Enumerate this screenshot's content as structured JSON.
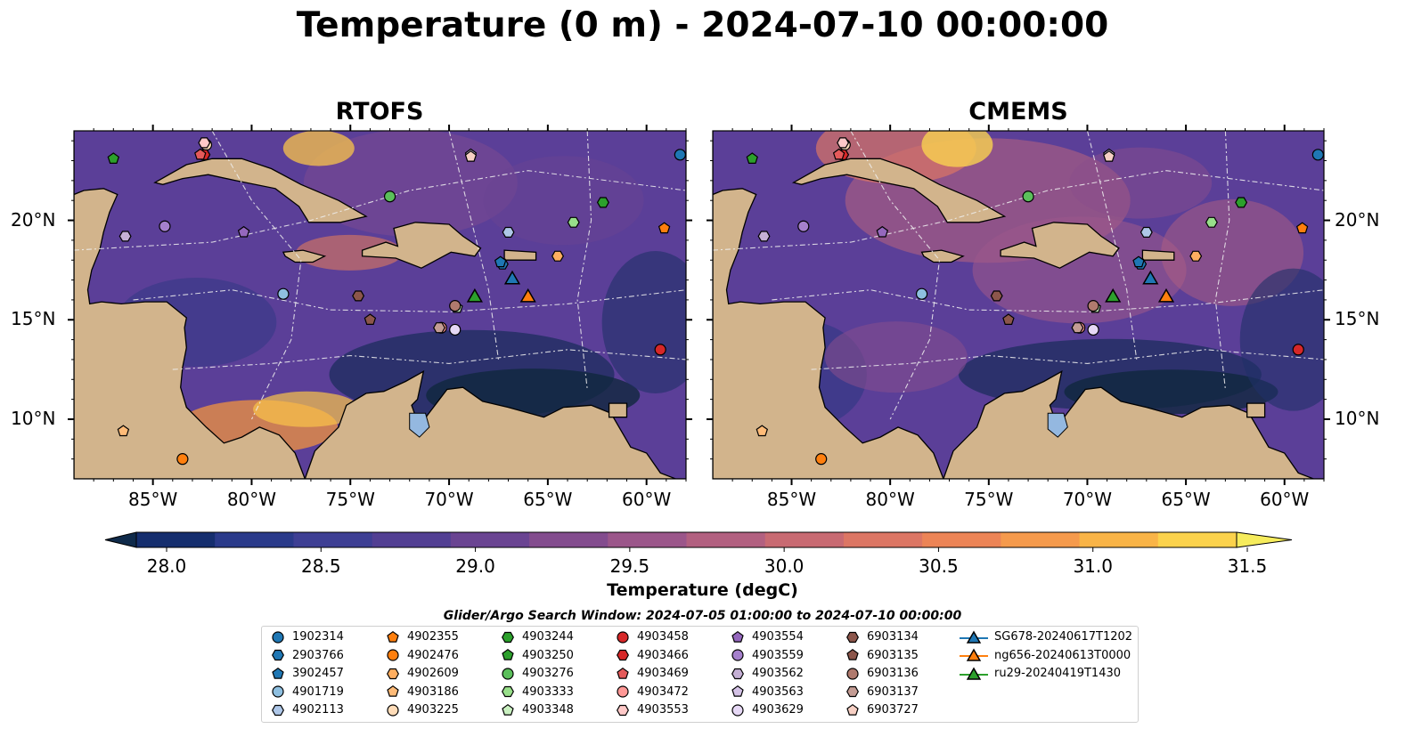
{
  "title": "Temperature (0 m) - 2024-07-10 00:00:00",
  "panels": [
    {
      "title": "RTOFS"
    },
    {
      "title": "CMEMS"
    }
  ],
  "map_axes": {
    "lon_ticks": [
      "85°W",
      "80°W",
      "75°W",
      "70°W",
      "65°W",
      "60°W"
    ],
    "lat_ticks": [
      "20°N",
      "15°N",
      "10°N"
    ],
    "lon_range": [
      -89,
      -58
    ],
    "lat_range": [
      7,
      24.5
    ]
  },
  "colorbar": {
    "label": "Temperature (degC)",
    "range": [
      28.0,
      31.5
    ],
    "tick_labels": [
      "28.0",
      "28.5",
      "29.0",
      "29.5",
      "30.0",
      "30.5",
      "31.0",
      "31.5"
    ],
    "colors": [
      "#0f2a4a",
      "#152e6e",
      "#2a3a8a",
      "#3e3f94",
      "#523f93",
      "#6a4492",
      "#834c8e",
      "#9b568a",
      "#b26080",
      "#c86a72",
      "#dc7664",
      "#ec8456",
      "#f59a4c",
      "#f9b447",
      "#fbd24c",
      "#f6ec5c"
    ],
    "extend": "both"
  },
  "search_window": "Glider/Argo Search Window: 2024-07-05 01:00:00 to 2024-07-10 00:00:00",
  "colors": {
    "land": "#d2b48c",
    "ocean_mid": "#5b3f98",
    "lake": "#94b8e0"
  },
  "legend": [
    {
      "label": "1902314",
      "marker": "circle",
      "color": "#1f77b4"
    },
    {
      "label": "2903766",
      "marker": "hexagon",
      "color": "#1f77b4"
    },
    {
      "label": "3902457",
      "marker": "pentagon",
      "color": "#1f77b4"
    },
    {
      "label": "4901719",
      "marker": "circle",
      "color": "#8ebfe0"
    },
    {
      "label": "4902113",
      "marker": "hexagon",
      "color": "#aec7e8"
    },
    {
      "label": "4902355",
      "marker": "pentagon",
      "color": "#ff7f0e"
    },
    {
      "label": "4902476",
      "marker": "circle",
      "color": "#ff7f0e"
    },
    {
      "label": "4902609",
      "marker": "hexagon",
      "color": "#ffae60"
    },
    {
      "label": "4903186",
      "marker": "pentagon",
      "color": "#ffbb78"
    },
    {
      "label": "4903225",
      "marker": "circle",
      "color": "#ffdcb8"
    },
    {
      "label": "4903244",
      "marker": "hexagon",
      "color": "#2ca02c"
    },
    {
      "label": "4903250",
      "marker": "pentagon",
      "color": "#2ca02c"
    },
    {
      "label": "4903276",
      "marker": "circle",
      "color": "#5bbf5b"
    },
    {
      "label": "4903333",
      "marker": "hexagon",
      "color": "#98df8a"
    },
    {
      "label": "4903348",
      "marker": "pentagon",
      "color": "#c9f0c0"
    },
    {
      "label": "4903458",
      "marker": "circle",
      "color": "#d62728"
    },
    {
      "label": "4903466",
      "marker": "hexagon",
      "color": "#d62728"
    },
    {
      "label": "4903469",
      "marker": "pentagon",
      "color": "#e55a5a"
    },
    {
      "label": "4903472",
      "marker": "circle",
      "color": "#ff9896"
    },
    {
      "label": "4903553",
      "marker": "hexagon",
      "color": "#ffc9c8"
    },
    {
      "label": "4903554",
      "marker": "pentagon",
      "color": "#9467bd"
    },
    {
      "label": "4903559",
      "marker": "circle",
      "color": "#a580cc"
    },
    {
      "label": "4903562",
      "marker": "hexagon",
      "color": "#c5b0d5"
    },
    {
      "label": "4903563",
      "marker": "pentagon",
      "color": "#d4c2e6"
    },
    {
      "label": "4903629",
      "marker": "circle",
      "color": "#e6d8f5"
    },
    {
      "label": "6903134",
      "marker": "hexagon",
      "color": "#8c564b"
    },
    {
      "label": "6903135",
      "marker": "pentagon",
      "color": "#8c564b"
    },
    {
      "label": "6903136",
      "marker": "circle",
      "color": "#b07a6e"
    },
    {
      "label": "6903137",
      "marker": "hexagon",
      "color": "#c49c94"
    },
    {
      "label": "6903727",
      "marker": "pentagon",
      "color": "#f7d0c4"
    },
    {
      "label": "SG678-20240617T1202",
      "marker": "triangle",
      "color": "#1f77b4",
      "line": true
    },
    {
      "label": "ng656-20240613T0000",
      "marker": "triangle",
      "color": "#ff7f0e",
      "line": true
    },
    {
      "label": "ru29-20240419T1430",
      "marker": "triangle",
      "color": "#2ca02c",
      "line": true
    }
  ],
  "chart_data": {
    "type": "scatter",
    "title": "Temperature (0 m) - 2024-07-10 00:00:00",
    "subplots": [
      "RTOFS",
      "CMEMS"
    ],
    "xlabel": "",
    "ylabel": "",
    "xlim": [
      -89,
      -58
    ],
    "ylim": [
      7,
      24.5
    ],
    "x_tick_labels": [
      "85°W",
      "80°W",
      "75°W",
      "70°W",
      "65°W",
      "60°W"
    ],
    "y_tick_labels": [
      "20°N",
      "15°N",
      "10°N"
    ],
    "points": [
      {
        "id": "1902314",
        "lon": -58.3,
        "lat": 23.3
      },
      {
        "id": "2903766",
        "lon": -67.3,
        "lat": 17.8
      },
      {
        "id": "3902457",
        "lon": -67.4,
        "lat": 17.9
      },
      {
        "id": "4901719",
        "lon": -78.4,
        "lat": 16.3
      },
      {
        "id": "4902113",
        "lon": -67.0,
        "lat": 19.4
      },
      {
        "id": "4902355",
        "lon": -59.1,
        "lat": 19.6
      },
      {
        "id": "4902476",
        "lon": -83.5,
        "lat": 8.0
      },
      {
        "id": "4902609",
        "lon": -64.5,
        "lat": 18.2
      },
      {
        "id": "4903186",
        "lon": -86.5,
        "lat": 9.4
      },
      {
        "id": "4903225",
        "lon": -82.3,
        "lat": 23.8
      },
      {
        "id": "4903244",
        "lon": -62.2,
        "lat": 20.9
      },
      {
        "id": "4903250",
        "lon": -87.0,
        "lat": 23.1
      },
      {
        "id": "4903276",
        "lon": -73.0,
        "lat": 21.2
      },
      {
        "id": "4903333",
        "lon": -63.7,
        "lat": 19.9
      },
      {
        "id": "4903348",
        "lon": -69.6,
        "lat": 15.6
      },
      {
        "id": "4903458",
        "lon": -59.3,
        "lat": 13.5
      },
      {
        "id": "4903466",
        "lon": -82.4,
        "lat": 23.3
      },
      {
        "id": "4903469",
        "lon": -82.6,
        "lat": 23.3
      },
      {
        "id": "4903472",
        "lon": -70.4,
        "lat": 14.6
      },
      {
        "id": "4903553",
        "lon": -82.4,
        "lat": 23.9
      },
      {
        "id": "4903554",
        "lon": -80.4,
        "lat": 19.4
      },
      {
        "id": "4903559",
        "lon": -84.4,
        "lat": 19.7
      },
      {
        "id": "4903562",
        "lon": -86.4,
        "lat": 19.2
      },
      {
        "id": "4903563",
        "lon": -68.9,
        "lat": 23.3
      },
      {
        "id": "4903629",
        "lon": -69.7,
        "lat": 14.5
      },
      {
        "id": "6903134",
        "lon": -74.6,
        "lat": 16.2
      },
      {
        "id": "6903135",
        "lon": -74.0,
        "lat": 15.0
      },
      {
        "id": "6903136",
        "lon": -69.7,
        "lat": 15.7
      },
      {
        "id": "6903137",
        "lon": -70.5,
        "lat": 14.6
      },
      {
        "id": "6903727",
        "lon": -68.9,
        "lat": 23.2
      },
      {
        "id": "SG678-20240617T1202",
        "lon": -66.8,
        "lat": 17.1
      },
      {
        "id": "ng656-20240613T0000",
        "lon": -66.0,
        "lat": 16.2
      },
      {
        "id": "ru29-20240419T1430",
        "lon": -68.7,
        "lat": 16.2
      }
    ]
  }
}
